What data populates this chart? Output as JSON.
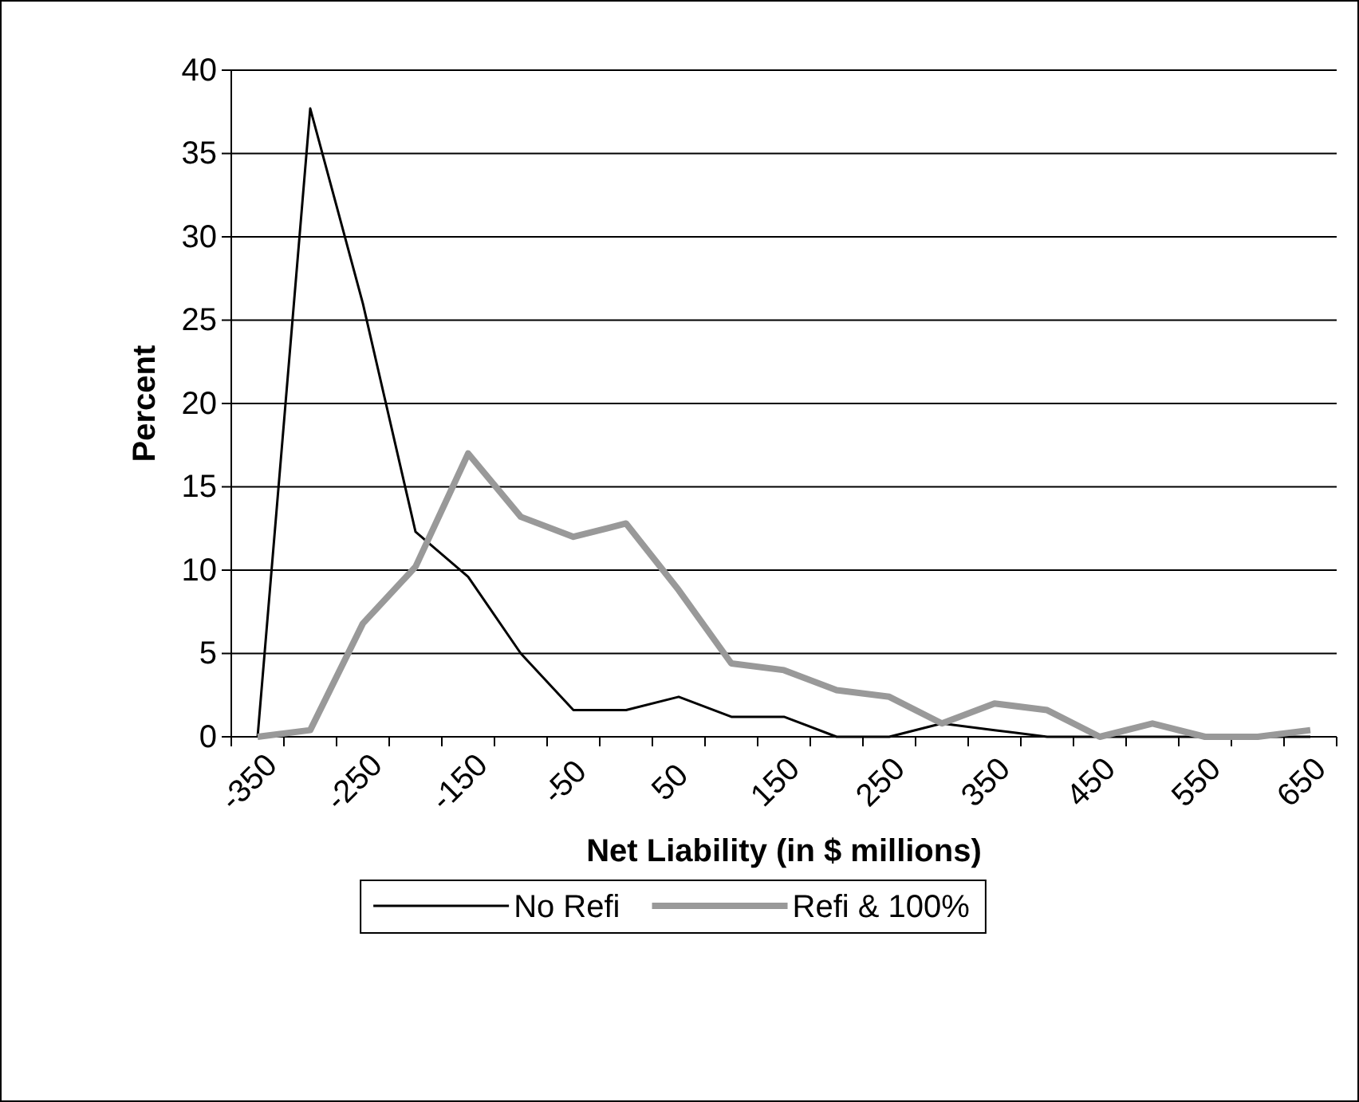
{
  "chart_data": {
    "type": "line",
    "xlabel": "Net Liability (in $ millions)",
    "ylabel": "Percent",
    "categories": [
      "-350",
      null,
      "-250",
      null,
      "-150",
      null,
      "-50",
      null,
      "50",
      null,
      "150",
      null,
      "250",
      null,
      "350",
      null,
      "450",
      null,
      "550",
      null,
      "650"
    ],
    "ylim": [
      0,
      40
    ],
    "yticks": [
      0,
      5,
      10,
      15,
      20,
      25,
      30,
      35,
      40
    ],
    "grid": "y",
    "legend": "bottom",
    "marker": "none",
    "series": [
      {
        "name": "No Refi",
        "color": "#000000",
        "values": [
          0,
          37.7,
          26,
          12.3,
          9.6,
          5,
          1.6,
          1.6,
          2.4,
          1.2,
          1.2,
          0,
          0,
          0.8,
          0.4,
          0,
          0,
          0,
          0,
          0,
          0
        ]
      },
      {
        "name": "Refi & 100%",
        "color": "#999999",
        "values": [
          0,
          0.4,
          6.8,
          10.2,
          17,
          13.2,
          12,
          12.8,
          8.8,
          4.4,
          4,
          2.8,
          2.4,
          0.8,
          2,
          1.6,
          0,
          0.8,
          0,
          0,
          0.4
        ]
      }
    ]
  }
}
